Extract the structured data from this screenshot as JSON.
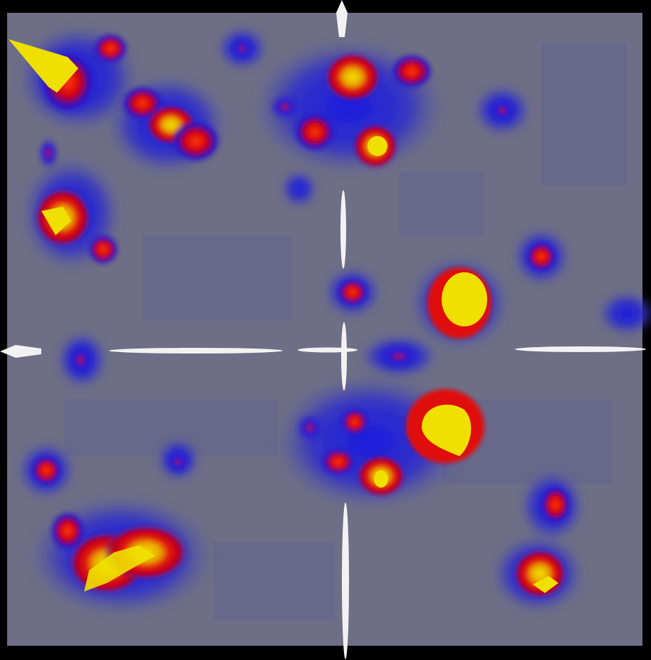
{
  "scene": {
    "background_color": "#000000",
    "plane_color": "#6e6e86",
    "axis_color": "#f2f2f2",
    "colormap": [
      "#2020d8",
      "#e01010",
      "#f0e000"
    ],
    "blobs": [
      {
        "name": "blob-top-left-spike",
        "level": "high"
      },
      {
        "name": "blob-top-left-cluster",
        "level": "medium"
      },
      {
        "name": "blob-top-left-ridge",
        "level": "medium"
      },
      {
        "name": "blob-top-center-cluster",
        "level": "medium"
      },
      {
        "name": "blob-top-center-peak",
        "level": "high"
      },
      {
        "name": "blob-left-peak",
        "level": "high"
      },
      {
        "name": "blob-center-small",
        "level": "low"
      },
      {
        "name": "blob-right-upper-peak",
        "level": "high"
      },
      {
        "name": "blob-right-small",
        "level": "low"
      },
      {
        "name": "blob-center-right-peak",
        "level": "high"
      },
      {
        "name": "blob-center-low-cluster",
        "level": "medium"
      },
      {
        "name": "blob-bottom-left-ridge",
        "level": "high"
      },
      {
        "name": "blob-bottom-right-peak",
        "level": "high"
      },
      {
        "name": "blob-bottom-right-small",
        "level": "medium"
      }
    ]
  }
}
